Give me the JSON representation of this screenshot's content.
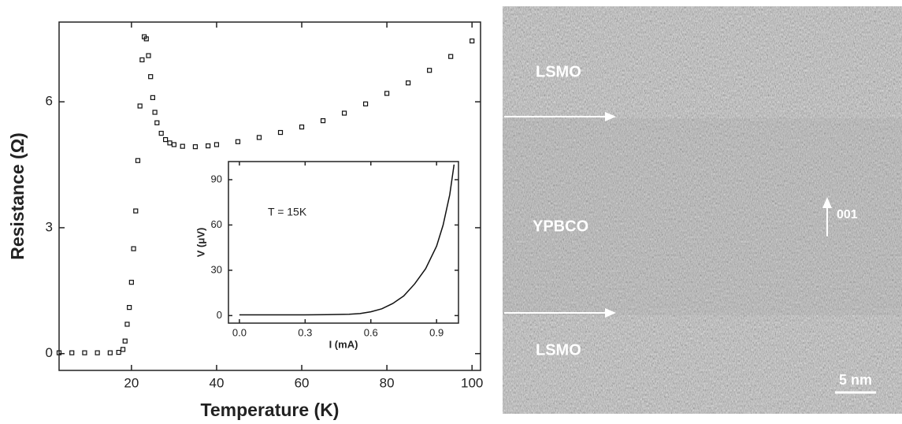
{
  "chart_data": [
    {
      "type": "scatter",
      "xlabel": "Temperature (K)",
      "ylabel": "Resistance (Ω)",
      "x": [
        3,
        6,
        9,
        12,
        15,
        17,
        18,
        18.5,
        19,
        19.5,
        20,
        20.5,
        21,
        21.5,
        22,
        22.5,
        23,
        23.5,
        24,
        24.5,
        25,
        25.5,
        26,
        27,
        28,
        29,
        30,
        32,
        35,
        38,
        40,
        45,
        50,
        55,
        60,
        65,
        70,
        75,
        80,
        85,
        90,
        95,
        100
      ],
      "values": [
        0.02,
        0.02,
        0.02,
        0.02,
        0.02,
        0.03,
        0.1,
        0.3,
        0.7,
        1.1,
        1.7,
        2.5,
        3.4,
        4.6,
        5.9,
        7.0,
        7.55,
        7.5,
        7.1,
        6.6,
        6.1,
        5.75,
        5.5,
        5.25,
        5.1,
        5.02,
        4.98,
        4.94,
        4.93,
        4.95,
        4.98,
        5.05,
        5.15,
        5.27,
        5.4,
        5.55,
        5.73,
        5.95,
        6.2,
        6.45,
        6.75,
        7.08,
        7.45
      ],
      "color": "#111111",
      "xlim": [
        3,
        102
      ],
      "ylim": [
        -0.4,
        7.9
      ],
      "xticks": [
        20,
        40,
        60,
        80,
        100
      ],
      "yticks": [
        0,
        3,
        6
      ]
    },
    {
      "type": "line",
      "xlabel": "I (mA)",
      "ylabel": "V (μV)",
      "annotation": "T = 15K",
      "x": [
        0,
        0.1,
        0.2,
        0.3,
        0.4,
        0.5,
        0.55,
        0.6,
        0.65,
        0.7,
        0.75,
        0.8,
        0.85,
        0.9,
        0.93,
        0.96,
        0.98
      ],
      "values": [
        0.5,
        0.5,
        0.5,
        0.5,
        0.6,
        0.9,
        1.3,
        2.5,
        4.5,
        8,
        13,
        21,
        31,
        46,
        60,
        80,
        100
      ],
      "color": "#111111",
      "xlim": [
        -0.05,
        1.0
      ],
      "ylim": [
        -5,
        102
      ],
      "xticks": [
        {
          "value": 0,
          "label": "0.0"
        },
        0.3,
        0.6,
        0.9
      ],
      "yticks": [
        0,
        30,
        60,
        90
      ]
    }
  ],
  "image": {
    "labels": [
      "LSMO",
      "YPBCO",
      "001",
      "LSMO",
      "5 nm"
    ]
  }
}
